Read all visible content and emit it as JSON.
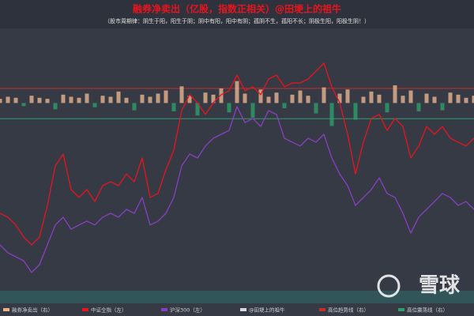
{
  "chart_data": {
    "type": "line",
    "title": "融券净卖出（亿股，指数正相关）@田埂上的祖牛",
    "subtitle": "（股市周期律：阴生于阳，阳生于阴；阴中有阳，阳中有阴；孤阴不生，孤阳不长；阴极生阳，阳极生阴！）",
    "watermark": "雪球",
    "ylim": [
      0,
      100
    ],
    "y2lim": [
      -18,
      7
    ],
    "series": [
      {
        "name": "融券净卖出（右）",
        "kind": "bar",
        "axis": "y2",
        "color": "#e8b48c",
        "negative_color": "#2e9e6a",
        "values": [
          0.4,
          0.6,
          0.5,
          -0.3,
          0.7,
          0.5,
          0.4,
          -0.6,
          0.8,
          0.6,
          0.5,
          0.9,
          -0.4,
          0.7,
          0.6,
          1.1,
          0.5,
          -0.7,
          0.8,
          0.6,
          0.9,
          1.2,
          -0.8,
          1.6,
          0.7,
          -1.2,
          1.0,
          0.8,
          1.4,
          -0.9,
          2.1,
          0.9,
          -1.4,
          1.3,
          0.6,
          1.0,
          -0.5,
          0.8,
          1.2,
          0.7,
          -1.0,
          1.5,
          -2.2,
          0.9,
          1.3,
          -1.6,
          0.6,
          1.1,
          0.8,
          -0.9,
          1.7,
          0.7,
          1.2,
          -0.8,
          0.9,
          0.6,
          -0.7,
          1.0,
          0.8,
          0.5,
          0.7
        ]
      },
      {
        "name": "中证全指（左）",
        "color": "#e8141e",
        "values": [
          29.7,
          28.2,
          25.2,
          20.6,
          17.6,
          20.6,
          32.7,
          47.9,
          52.4,
          38.8,
          35.8,
          38.8,
          34.2,
          40.3,
          41.8,
          40.3,
          44.8,
          41.8,
          50.9,
          35.8,
          37.3,
          46.4,
          53.9,
          69.1,
          75.2,
          72.1,
          67.6,
          72.1,
          75.2,
          76.7,
          82.7,
          76.7,
          78.2,
          75.2,
          81.2,
          82.7,
          78.2,
          79.7,
          79.7,
          81.2,
          84.2,
          87.3,
          78.2,
          72.1,
          60,
          44.8,
          57,
          66.1,
          67.6,
          61.5,
          66.1,
          63,
          50.9,
          55.5,
          63,
          60,
          63,
          58.5,
          57,
          55.5,
          58.5
        ]
      },
      {
        "name": "沪深300（左）",
        "color": "#8a3fc2",
        "values": [
          17.6,
          14.5,
          13,
          11.5,
          7,
          10,
          17.6,
          25.2,
          28.2,
          23.6,
          25.2,
          26.7,
          25.2,
          28.2,
          29.7,
          28.2,
          31.2,
          29.7,
          35.8,
          25.2,
          26.7,
          29.7,
          35.8,
          47.9,
          52.4,
          50.9,
          55.5,
          58.5,
          60,
          61.5,
          70.6,
          64.5,
          66.1,
          63,
          69.1,
          67.6,
          58.5,
          57,
          55.5,
          58.5,
          57,
          60,
          50.9,
          44.8,
          40.3,
          32.7,
          35.8,
          38.8,
          43.3,
          37.3,
          35.8,
          29.7,
          22.1,
          28.2,
          31.2,
          34.2,
          37.3,
          35.8,
          32.7,
          34.2,
          31.2
        ]
      },
      {
        "name": "@田埂上的祖牛",
        "kind": "legend-only",
        "color": "#d8d8d8"
      },
      {
        "name": "高位趋势线（右）",
        "kind": "hline",
        "axis": "y2",
        "color": "#c0302b",
        "values": [
          1.4
        ]
      },
      {
        "name": "高位震荡线（右）",
        "kind": "hline",
        "axis": "y2",
        "color": "#2e9e6a",
        "values": [
          -1.5
        ]
      }
    ]
  }
}
